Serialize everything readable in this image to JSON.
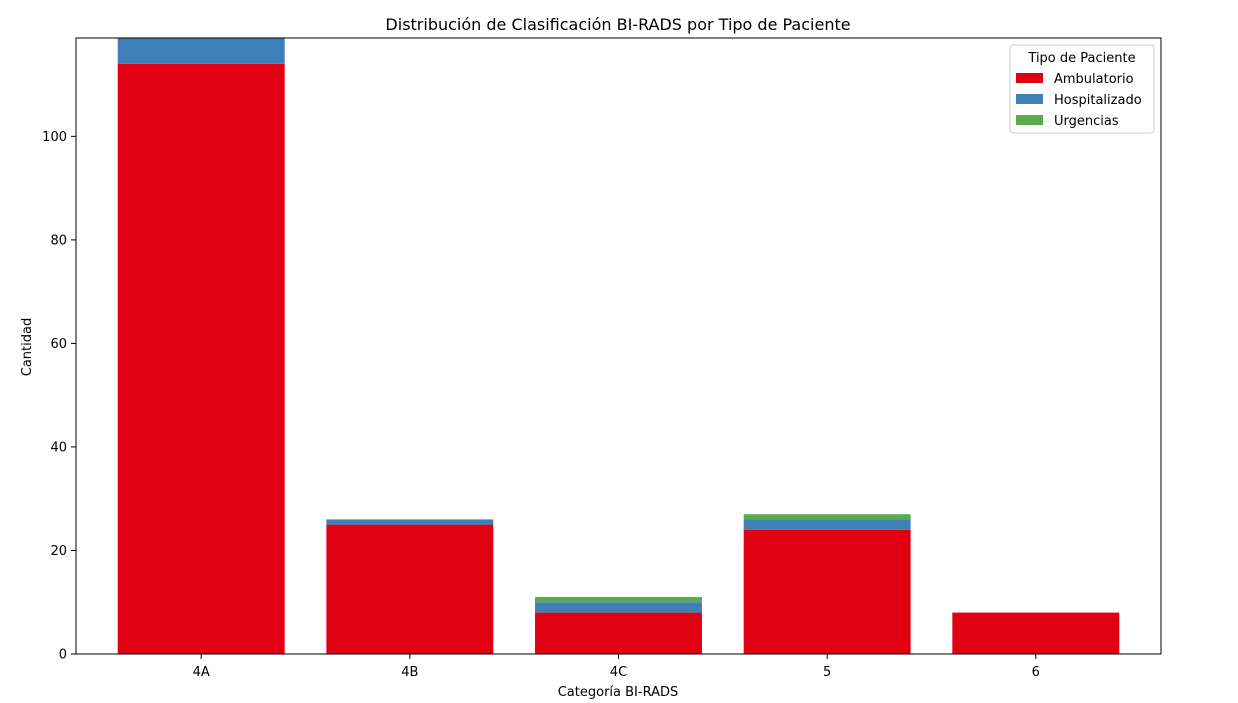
{
  "chart_data": {
    "type": "bar",
    "stacked": true,
    "title": "Distribución de Clasificación BI-RADS por Tipo de Paciente",
    "xlabel": "Categoría BI-RADS",
    "ylabel": "Cantidad",
    "categories": [
      "4A",
      "4B",
      "4C",
      "5",
      "6"
    ],
    "series": [
      {
        "name": "Ambulatorio",
        "color": "#e00012",
        "values": [
          114,
          25,
          8,
          24,
          8
        ]
      },
      {
        "name": "Hospitalizado",
        "color": "#3e7fb8",
        "values": [
          5,
          1,
          2,
          2,
          0
        ]
      },
      {
        "name": "Urgencias",
        "color": "#59ab4c",
        "values": [
          0,
          0,
          1,
          1,
          0
        ]
      }
    ],
    "ylim": [
      0,
      119
    ],
    "yticks": [
      0,
      20,
      40,
      60,
      80,
      100
    ],
    "legend": {
      "title": "Tipo de Paciente",
      "placement": "top-right"
    },
    "grid": false
  }
}
